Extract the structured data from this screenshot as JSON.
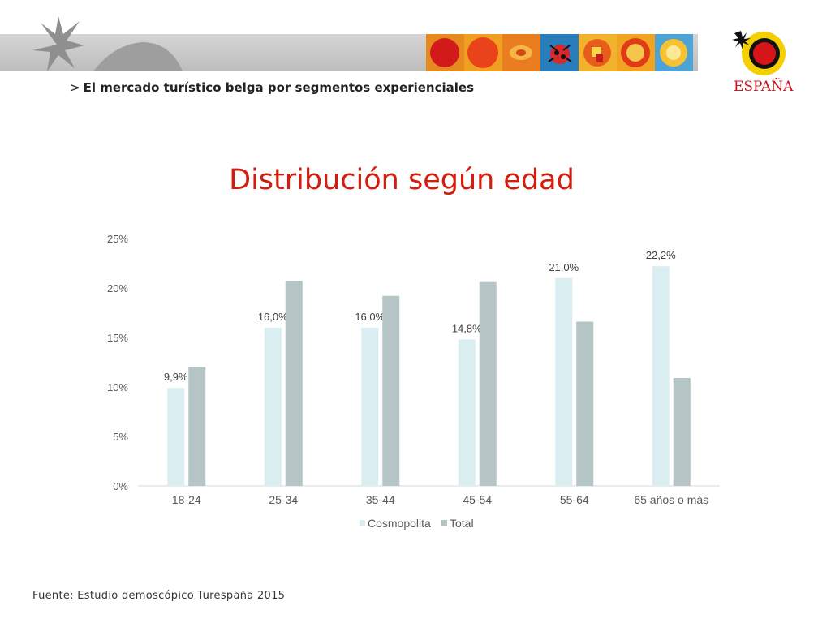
{
  "header": {
    "section_title": "El mercado turístico belga por segmentos experienciales",
    "chevron": ">"
  },
  "logo": {
    "text": "ESPAÑA"
  },
  "footer": {
    "source_label": "Fuente:",
    "source_text": "Estudio demoscópico Turespaña 2015"
  },
  "colors": {
    "title_red": "#d21d0f",
    "cosmopolita": "#daedf1",
    "total": "#b5c4c5"
  },
  "chart_data": {
    "type": "bar",
    "title": "Distribución según edad",
    "categories": [
      "18-24",
      "25-34",
      "35-44",
      "45-54",
      "55-64",
      "65 años o más"
    ],
    "series": [
      {
        "name": "Cosmopolita",
        "values": [
          9.9,
          16.0,
          16.0,
          14.8,
          21.0,
          22.2
        ],
        "labels": [
          "9,9%",
          "16,0%",
          "16,0%",
          "14,8%",
          "21,0%",
          "22,2%"
        ]
      },
      {
        "name": "Total",
        "values": [
          12.0,
          20.7,
          19.2,
          20.6,
          16.6,
          10.9
        ]
      }
    ],
    "ylim": [
      0,
      25
    ],
    "yticks": [
      "0%",
      "5%",
      "10%",
      "15%",
      "20%",
      "25%"
    ],
    "legend_position": "bottom",
    "grid": false
  }
}
